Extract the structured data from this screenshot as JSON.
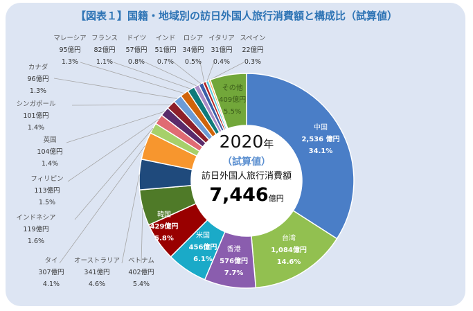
{
  "title": "【図表１】国籍・地域別の訪日外国人旅行消費額と構成比（試算値）",
  "center": {
    "year": "2020",
    "year_unit": "年",
    "note": "（試算値）",
    "label": "訪日外国人旅行消費額",
    "total": "7,446",
    "total_unit": "億円"
  },
  "chart_data": {
    "type": "pie",
    "donut": true,
    "title": "国籍・地域別の訪日外国人旅行消費額と構成比（試算値）",
    "unit": "億円",
    "total": 7446,
    "slices": [
      {
        "name": "中国",
        "value": 2536,
        "value_label": "2,536 億円",
        "pct": "34.1%",
        "color": "#4a7ec7",
        "inside": true
      },
      {
        "name": "台湾",
        "value": 1084,
        "value_label": "1,084億円",
        "pct": "14.6%",
        "color": "#92c050",
        "inside": true
      },
      {
        "name": "香港",
        "value": 576,
        "value_label": "576億円",
        "pct": "7.7%",
        "color": "#8a5dae",
        "inside": true
      },
      {
        "name": "米国",
        "value": 456,
        "value_label": "456億円",
        "pct": "6.1%",
        "color": "#1aaac8",
        "inside": true
      },
      {
        "name": "韓国",
        "value": 429,
        "value_label": "429億円",
        "pct": "5.8%",
        "color": "#990000",
        "inside": true
      },
      {
        "name": "ベトナム",
        "value": 402,
        "value_label": "402億円",
        "pct": "5.4%",
        "color": "#4f7a28",
        "inside": false
      },
      {
        "name": "オーストラリア",
        "value": 341,
        "value_label": "341億円",
        "pct": "4.6%",
        "color": "#1f4a7c",
        "inside": false
      },
      {
        "name": "タイ",
        "value": 307,
        "value_label": "307億円",
        "pct": "4.1%",
        "color": "#f7962e",
        "inside": false
      },
      {
        "name": "インドネシア",
        "value": 119,
        "value_label": "119億円",
        "pct": "1.6%",
        "color": "#a6d06a",
        "inside": false
      },
      {
        "name": "フィリピン",
        "value": 113,
        "value_label": "113億円",
        "pct": "1.5%",
        "color": "#e06b73",
        "inside": false
      },
      {
        "name": "英国",
        "value": 104,
        "value_label": "104億円",
        "pct": "1.4%",
        "color": "#5a2a6a",
        "inside": false
      },
      {
        "name": "シンガポール",
        "value": 101,
        "value_label": "101億円",
        "pct": "1.4%",
        "color": "#8e1f2a",
        "inside": false
      },
      {
        "name": "カナダ",
        "value": 96,
        "value_label": "96億円",
        "pct": "1.3%",
        "color": "#6c9bd6",
        "inside": false
      },
      {
        "name": "マレーシア",
        "value": 95,
        "value_label": "95億円",
        "pct": "1.3%",
        "color": "#d0640a",
        "inside": false
      },
      {
        "name": "フランス",
        "value": 82,
        "value_label": "82億円",
        "pct": "1.1%",
        "color": "#0f7a7a",
        "inside": false
      },
      {
        "name": "ドイツ",
        "value": 57,
        "value_label": "57億円",
        "pct": "0.8%",
        "color": "#a98bc6",
        "inside": false
      },
      {
        "name": "インド",
        "value": 51,
        "value_label": "51億円",
        "pct": "0.7%",
        "color": "#3b5ea8",
        "inside": false
      },
      {
        "name": "ロシア",
        "value": 34,
        "value_label": "34億円",
        "pct": "0.5%",
        "color": "#b22222",
        "inside": false
      },
      {
        "name": "イタリア",
        "value": 31,
        "value_label": "31億円",
        "pct": "0.4%",
        "color": "#5bc8dc",
        "inside": false
      },
      {
        "name": "スペイン",
        "value": 22,
        "value_label": "22億円",
        "pct": "0.3%",
        "color": "#f5a54a",
        "inside": false
      },
      {
        "name": "その他",
        "value": 409,
        "value_label": "409億円",
        "pct": "5.5%",
        "color": "#72a73a",
        "inside": true,
        "dark_text": true
      }
    ]
  }
}
